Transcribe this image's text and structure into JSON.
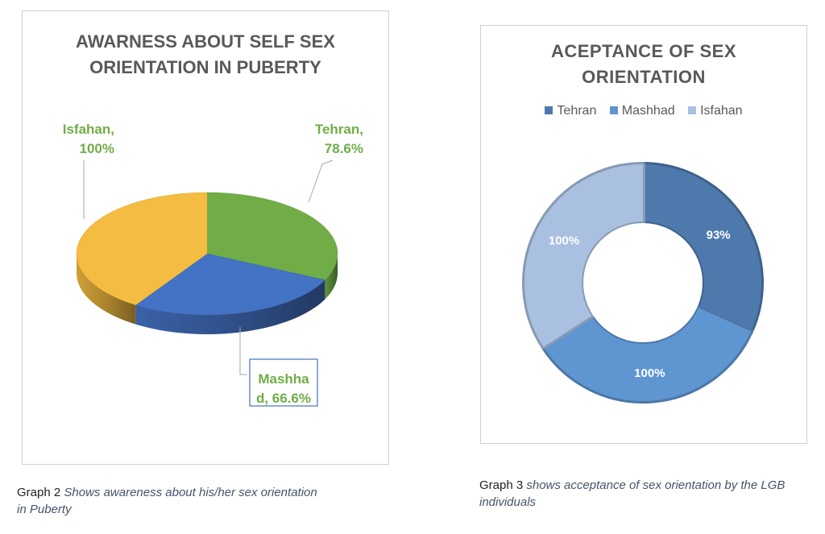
{
  "chart_data": [
    {
      "type": "pie",
      "title_lines": [
        "AWARNESS ABOUT SELF SEX",
        "ORIENTATION IN PUBERTY"
      ],
      "categories": [
        "Tehran",
        "Mashhad",
        "Isfahan"
      ],
      "values": [
        78.6,
        66.6,
        100
      ],
      "value_labels": [
        "78.6%",
        "66.6%",
        "100%"
      ],
      "data_labels": [
        [
          "Tehran,",
          "78.6%"
        ],
        [
          "Mashha",
          "d, 66.6%"
        ],
        [
          "Isfahan,",
          "100%"
        ]
      ],
      "colors": [
        "#70ad47",
        "#4472c4",
        "#f4bc41"
      ],
      "label_color": "#70ad47",
      "legend": "none",
      "style": "3d"
    },
    {
      "type": "pie",
      "subtype": "doughnut",
      "title_lines": [
        "ACEPTANCE OF SEX",
        "ORIENTATION"
      ],
      "categories": [
        "Tehran",
        "Mashhad",
        "Isfahan"
      ],
      "values": [
        93,
        100,
        100
      ],
      "value_labels": [
        "93%",
        "100%",
        "100%"
      ],
      "colors": [
        "#4e79ad",
        "#5f95d0",
        "#a9c0e0"
      ],
      "legend": "top"
    }
  ],
  "captions": [
    {
      "prefix": "Graph 2 ",
      "italic_line1": "Shows awareness about his/her sex orientation",
      "italic_line2": "in Puberty"
    },
    {
      "prefix": "Graph 3 ",
      "italic_line1": "shows acceptance of sex orientation by the LGB",
      "italic_line2": "individuals"
    }
  ]
}
